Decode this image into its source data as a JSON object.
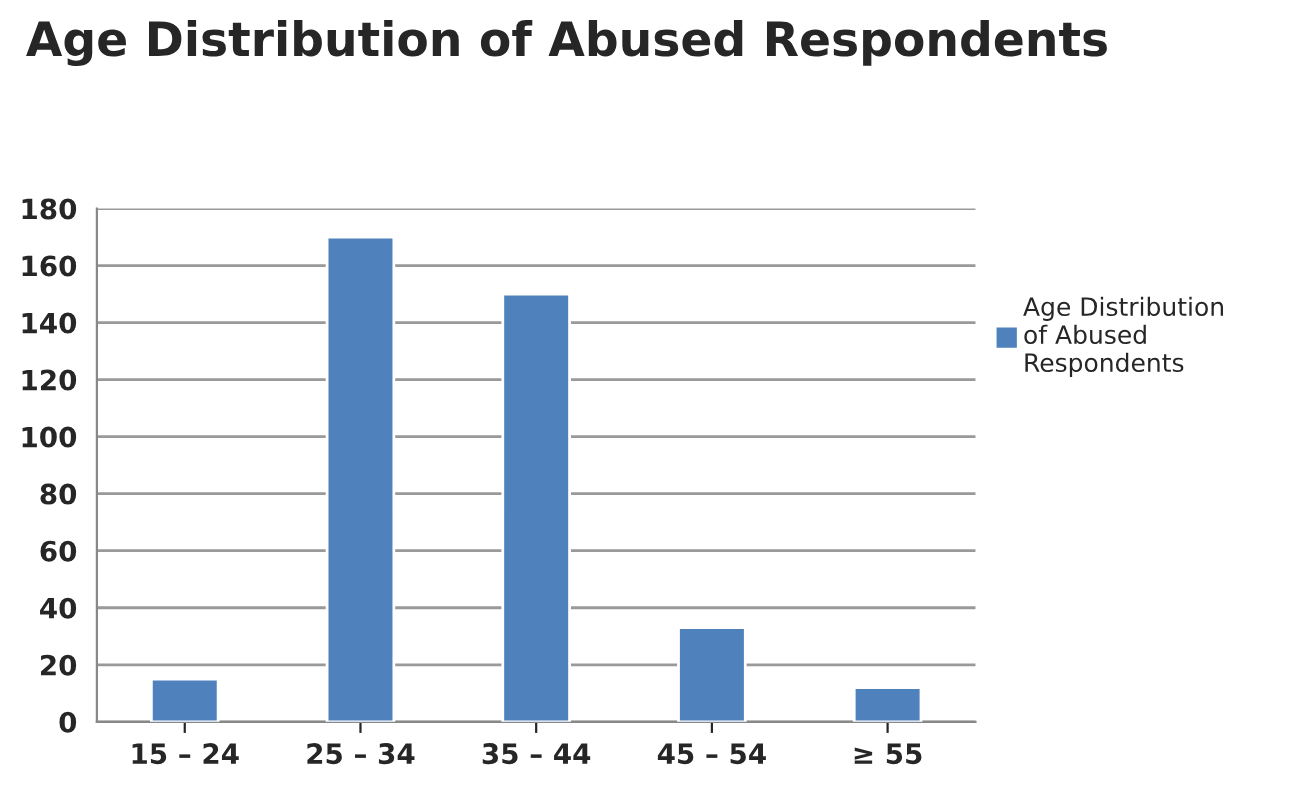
{
  "chart_data": {
    "type": "bar",
    "title": "Age Distribution of Abused Respondents",
    "categories": [
      "15 – 24",
      "25 – 34",
      "35 – 44",
      "45 – 54",
      "≥ 55"
    ],
    "series": [
      {
        "name": "Age Distribution of Abused Respondents",
        "color": "#4f81bd",
        "values": [
          15,
          170,
          150,
          33,
          12
        ]
      }
    ],
    "ylim": [
      0,
      180
    ],
    "yticks": [
      0,
      20,
      40,
      60,
      80,
      100,
      120,
      140,
      160,
      180
    ],
    "grid": "y",
    "legend": "right"
  }
}
